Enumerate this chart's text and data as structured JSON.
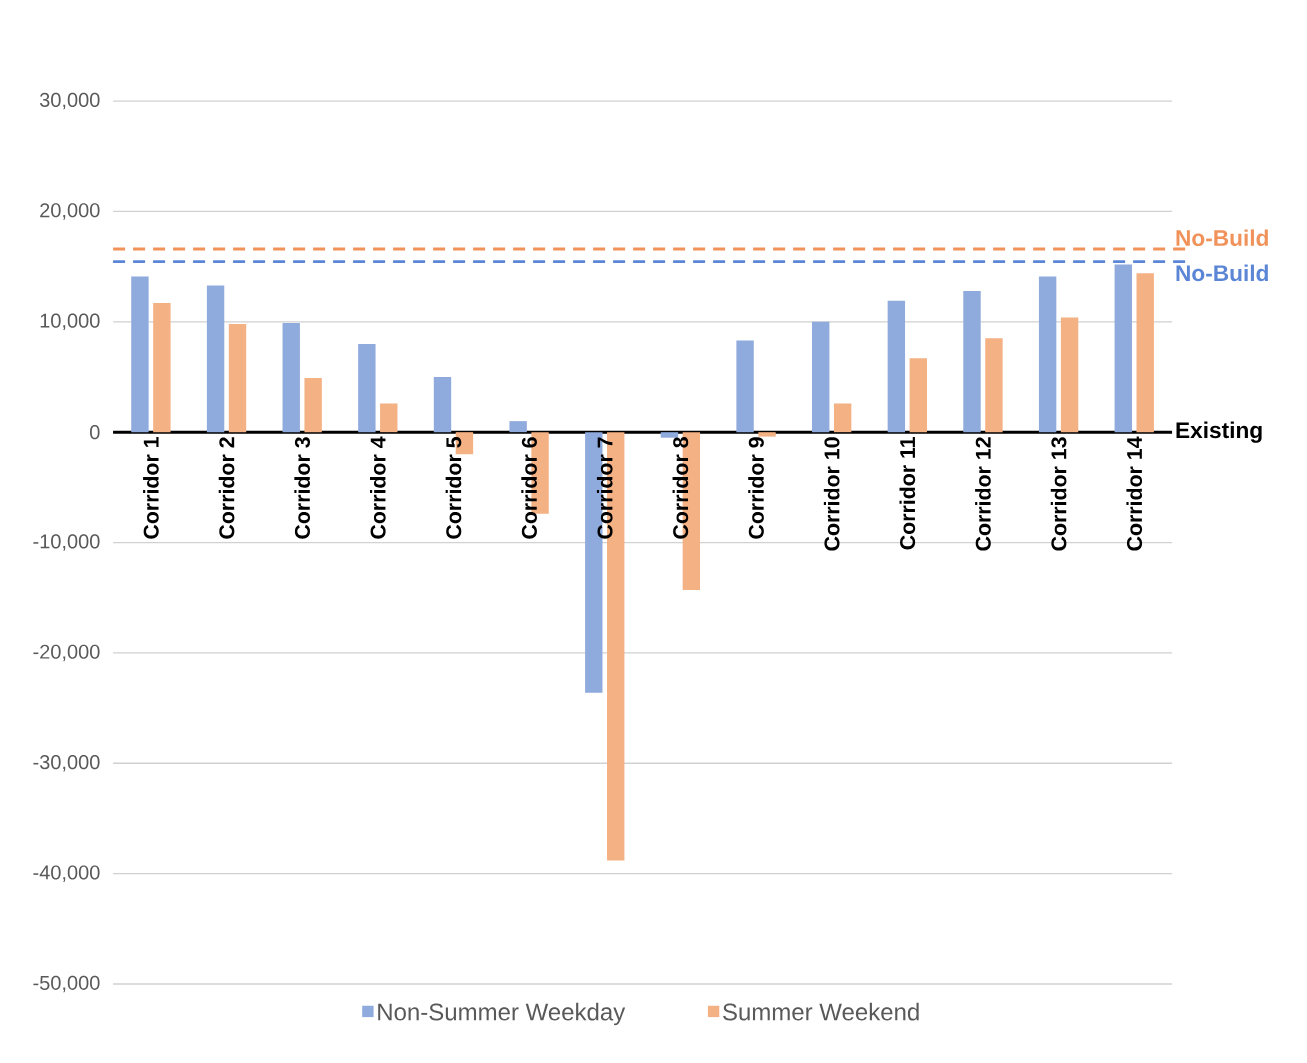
{
  "chart_data": {
    "type": "bar",
    "categories": [
      "Corridor 1",
      "Corridor 2",
      "Corridor 3",
      "Corridor 4",
      "Corridor 5",
      "Corridor 6",
      "Corridor 7",
      "Corridor 8",
      "Corridor 9",
      "Corridor 10",
      "Corridor 11",
      "Corridor 12",
      "Corridor 13",
      "Corridor 14"
    ],
    "series": [
      {
        "name": "Non-Summer Weekday",
        "color": "#8faadc",
        "values": [
          14100,
          13300,
          9900,
          8000,
          5000,
          1000,
          -23600,
          -500,
          8300,
          10000,
          11900,
          12800,
          14100,
          15200
        ]
      },
      {
        "name": "Summer Weekend",
        "color": "#f4b183",
        "values": [
          11700,
          9800,
          4900,
          2600,
          -2000,
          -7400,
          -38800,
          -14300,
          -400,
          2600,
          6700,
          8500,
          10400,
          14400
        ]
      }
    ],
    "ylim": [
      -50000,
      30000
    ],
    "yticks": [
      {
        "value": -50000,
        "label": "-50,000"
      },
      {
        "value": -40000,
        "label": "-40,000"
      },
      {
        "value": -30000,
        "label": "-30,000"
      },
      {
        "value": -20000,
        "label": "-20,000"
      },
      {
        "value": -10000,
        "label": "-10,000"
      },
      {
        "value": 0,
        "label": "0"
      },
      {
        "value": 10000,
        "label": "10,000"
      },
      {
        "value": 20000,
        "label": "20,000"
      },
      {
        "value": 30000,
        "label": "30,000"
      }
    ],
    "grid": "y",
    "legend": "bottom",
    "ref_lines": [
      {
        "axis": "y",
        "value": 16600,
        "label": "No-Build",
        "color": "#f0925a",
        "line_style": "dashed"
      },
      {
        "axis": "y",
        "value": 15450,
        "label": "No-Build",
        "color": "#5b86d6",
        "line_style": "dashed"
      }
    ],
    "annotations": [
      "Existing"
    ]
  }
}
